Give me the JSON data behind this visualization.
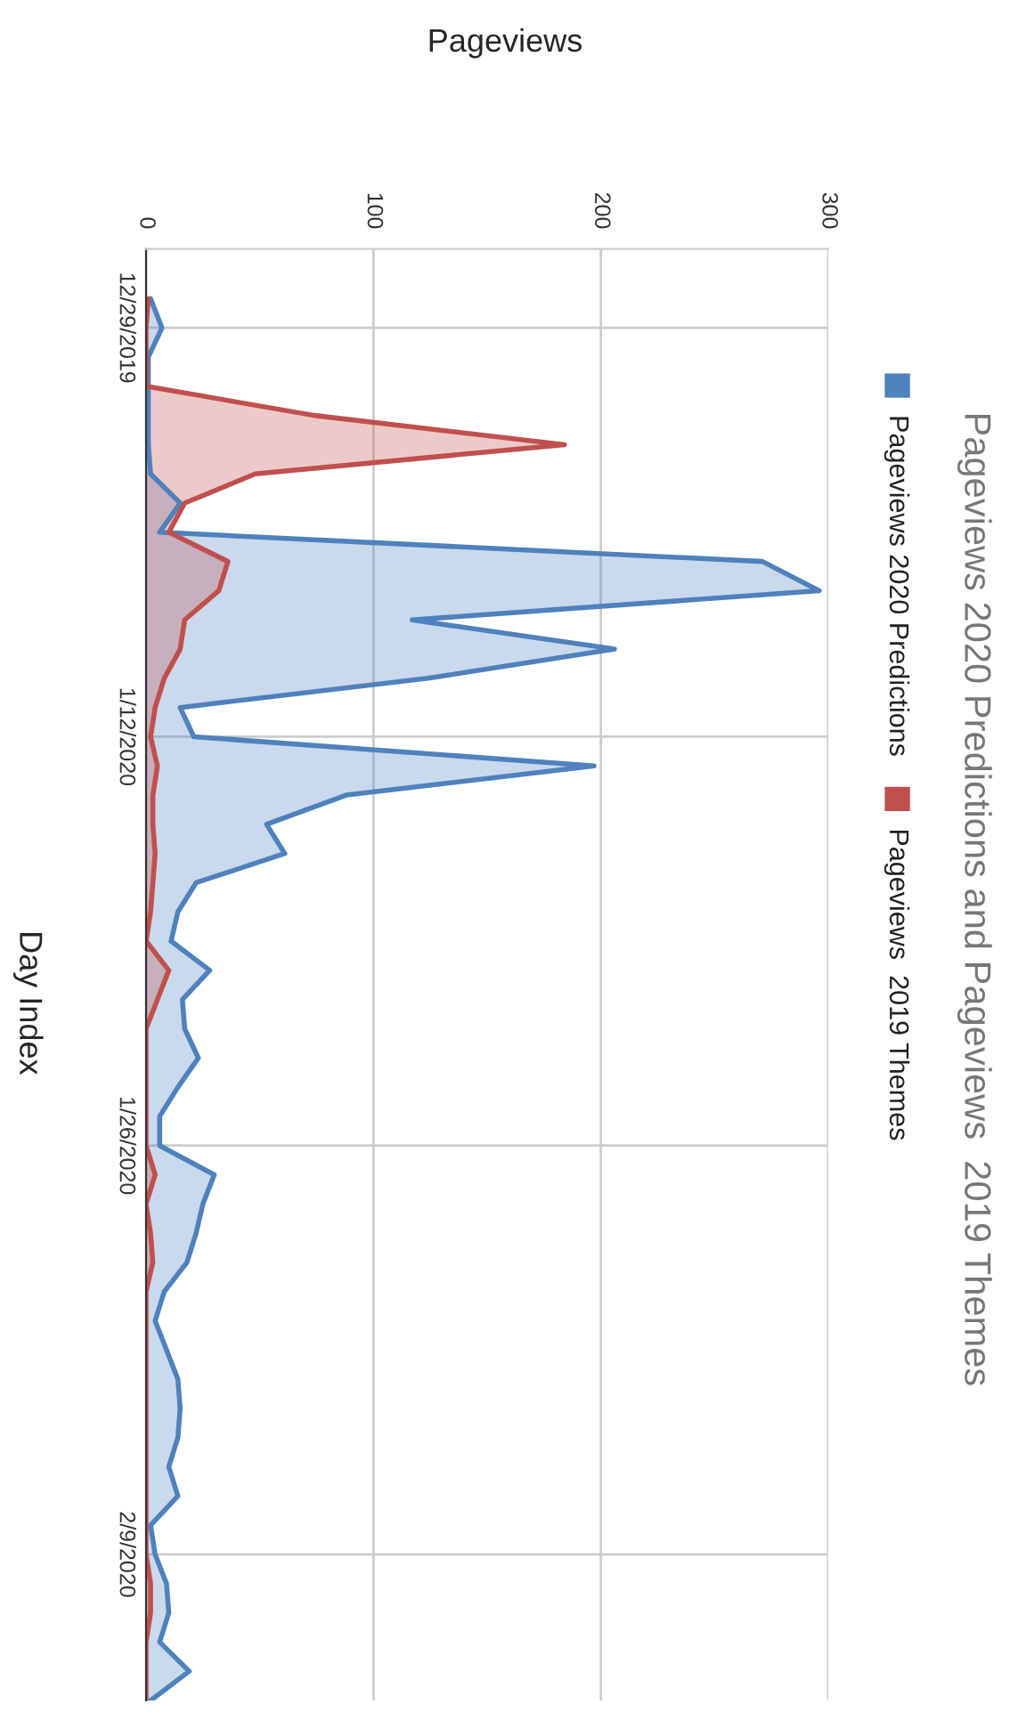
{
  "chart_data": {
    "type": "area",
    "orientation": "horizontal",
    "title": "Pageviews 2020 Predictions and Pageviews  2019 Themes",
    "xlabel": "Pageviews",
    "ylabel": "Day Index",
    "categories": [
      null,
      "12/29/2019",
      null,
      null,
      null,
      null,
      null,
      null,
      null,
      null,
      null,
      null,
      null,
      null,
      null,
      "1/12/2020",
      null,
      null,
      null,
      null,
      null,
      null,
      null,
      null,
      null,
      null,
      null,
      null,
      null,
      "1/26/2020",
      null,
      null,
      null,
      null,
      null,
      null,
      null,
      null,
      null,
      null,
      null,
      null,
      null,
      "2/9/2020",
      null,
      null,
      null,
      null,
      null
    ],
    "series": [
      {
        "name": "Pageviews 2020 Predictions",
        "color": "#4f81bd",
        "values": [
          2,
          7,
          1,
          1,
          1,
          1,
          2,
          15,
          6,
          271,
          296,
          117,
          206,
          124,
          15,
          21,
          197,
          88,
          53,
          61,
          22,
          14,
          11,
          28,
          16,
          17,
          23,
          14,
          6,
          6,
          30,
          25,
          22,
          18,
          8,
          4,
          9,
          14,
          15,
          14,
          10,
          14,
          2,
          4,
          9,
          10,
          6,
          19,
          2
        ]
      },
      {
        "name": "Pageviews  2019 Themes",
        "color": "#c0504d",
        "values": [
          1,
          0,
          0,
          0,
          74,
          184,
          48,
          17,
          10,
          36,
          32,
          17,
          15,
          8,
          4,
          2,
          5,
          3,
          3,
          4,
          3,
          2,
          0,
          10,
          5,
          0,
          0,
          0,
          0,
          0,
          4,
          0,
          2,
          3,
          0,
          0,
          0,
          0,
          0,
          0,
          0,
          0,
          0,
          0,
          2,
          2,
          0,
          0,
          0
        ]
      }
    ],
    "xlim": [
      0,
      300
    ],
    "xticks": [
      0,
      100,
      200,
      300
    ],
    "grid": true,
    "legend": "right"
  }
}
